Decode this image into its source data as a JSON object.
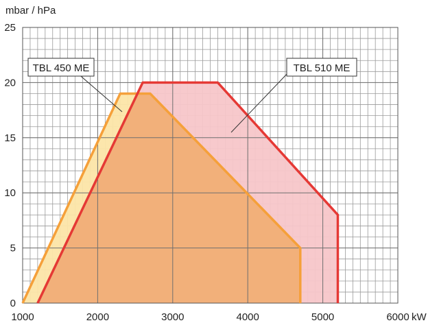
{
  "chart_data": {
    "type": "area",
    "ylabel": "mbar / hPa",
    "xlabel": "kW",
    "xlim": [
      1000,
      6000
    ],
    "ylim": [
      0,
      25
    ],
    "x_ticks": [
      "1000",
      "2000",
      "3000",
      "4000",
      "5000",
      "6000"
    ],
    "y_ticks": [
      "0",
      "5",
      "10",
      "15",
      "20",
      "25"
    ],
    "grid": true,
    "series": [
      {
        "name": "TBL 510 ME",
        "points": [
          [
            1200,
            0
          ],
          [
            2600,
            20
          ],
          [
            3600,
            20
          ],
          [
            5200,
            8
          ],
          [
            5200,
            0
          ]
        ],
        "line_color": "#e53935",
        "fill_color": "#f7c6c9"
      },
      {
        "name": "TBL 450 ME",
        "points": [
          [
            1000,
            0
          ],
          [
            2300,
            19
          ],
          [
            2700,
            19
          ],
          [
            4700,
            5
          ],
          [
            4700,
            0
          ]
        ],
        "line_color": "#f5a03a",
        "fill_color": "#f2b07a",
        "only_fill_color": "#fce5a8"
      }
    ]
  }
}
